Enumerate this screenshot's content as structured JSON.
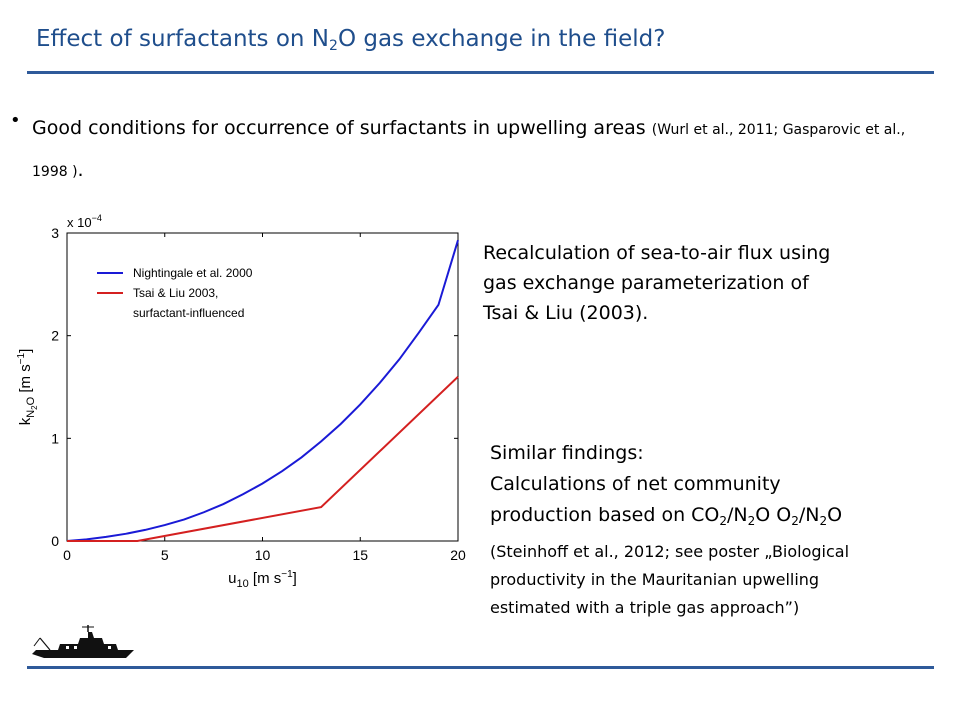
{
  "slide": {
    "title_before": "Effect of surfactants on N",
    "title_sub": "2",
    "title_after": "O gas exchange in the field?",
    "bullet_main": "Good conditions for occurrence of surfactants in upwelling areas ",
    "bullet_ref": "(Wurl et al., 2011; Gasparovic et al., 1998 )",
    "bullet_end": ".",
    "recalc_lines": [
      "Recalculation of sea-to-air flux using",
      "gas exchange parameterization of",
      "Tsai & Liu (2003)."
    ],
    "similar": {
      "heading": "Similar findings:",
      "line1": "Calculations of net community",
      "line2_parts": [
        {
          "t": "production based on CO",
          "s": false
        },
        {
          "t": "2",
          "s": true
        },
        {
          "t": "/N",
          "s": false
        },
        {
          "t": "2",
          "s": true
        },
        {
          "t": "O O",
          "s": false
        },
        {
          "t": "2",
          "s": true
        },
        {
          "t": "/N",
          "s": false
        },
        {
          "t": "2",
          "s": true
        },
        {
          "t": "O",
          "s": false
        }
      ],
      "small_lines": [
        "(Steinhoff et al., 2012; see poster „Biological",
        "productivity in the Mauritanian upwelling",
        "estimated with a triple gas approach”)"
      ]
    }
  },
  "chart_data": {
    "type": "line",
    "xlabel_main": "u",
    "xlabel_sub": "10",
    "xlabel_units": "[m s",
    "xlabel_exp": "−1",
    "xlabel_close": "]",
    "ylabel_main": "k",
    "ylabel_sub": "N",
    "ylabel_subsub": "2",
    "ylabel_subtail": "O",
    "ylabel_units": "[m s",
    "ylabel_exp": "−1",
    "ylabel_close": "]",
    "y_multiplier_base": "x 10",
    "y_multiplier_exp": "−4",
    "xlim": [
      0,
      20
    ],
    "ylim": [
      0,
      3.0
    ],
    "xticks": [
      0,
      5,
      10,
      15,
      20
    ],
    "yticks": [
      0,
      1,
      2,
      3
    ],
    "legend_position": "top-left",
    "series": [
      {
        "name": "Nightingale et al. 2000",
        "color": "#1a1ad6",
        "x": [
          0,
          1,
          2,
          3,
          4,
          5,
          6,
          7,
          8,
          9,
          10,
          11,
          12,
          13,
          14,
          15,
          16,
          17,
          18,
          19,
          20
        ],
        "y": [
          0,
          0.016,
          0.04,
          0.07,
          0.108,
          0.155,
          0.21,
          0.28,
          0.36,
          0.455,
          0.56,
          0.68,
          0.815,
          0.97,
          1.14,
          1.33,
          1.54,
          1.77,
          2.03,
          2.3,
          2.93
        ]
      },
      {
        "name_lines": [
          "Tsai & Liu 2003,",
          "surfactant-influenced"
        ],
        "color": "#d42020",
        "x": [
          0,
          3.6,
          13,
          20
        ],
        "y": [
          0,
          0,
          0.33,
          1.6
        ]
      }
    ]
  }
}
